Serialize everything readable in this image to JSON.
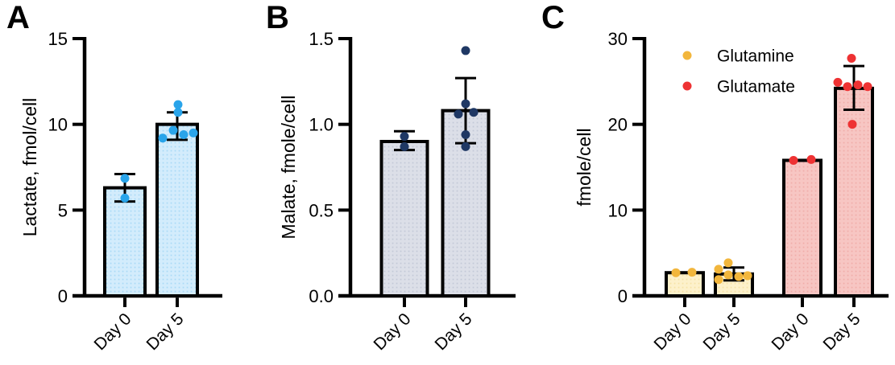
{
  "figure": {
    "background": "#ffffff",
    "text_color": "#000000"
  },
  "chart_data": [
    {
      "panel_label": "A",
      "type": "bar",
      "ylabel": "Lactate, fmol/cell",
      "ylim": [
        0,
        15
      ],
      "grid": false,
      "yticks": [
        {
          "value": 0,
          "label": "0"
        },
        {
          "value": 5,
          "label": "5"
        },
        {
          "value": 10,
          "label": "10"
        },
        {
          "value": 15,
          "label": "15"
        }
      ],
      "bar_style": {
        "fill_base": "#d3ecfc",
        "fill_dot": "#a9daf6",
        "stroke": "#000000"
      },
      "point_color": "#29a4ea",
      "bars": [
        {
          "category": "Day 0",
          "mean": 6.3,
          "error_low": 5.5,
          "error_high": 7.1,
          "points": [
            {
              "v": 6.85,
              "dx": 0
            },
            {
              "v": 5.7,
              "dx": 0
            }
          ]
        },
        {
          "category": "Day 5",
          "mean": 10.0,
          "error_low": 9.1,
          "error_high": 10.7,
          "points": [
            {
              "v": 11.15,
              "dx": 1
            },
            {
              "v": 10.7,
              "dx": 1
            },
            {
              "v": 9.65,
              "dx": -5
            },
            {
              "v": 9.2,
              "dx": -18
            },
            {
              "v": 9.4,
              "dx": 8
            },
            {
              "v": 9.5,
              "dx": 20
            }
          ]
        }
      ]
    },
    {
      "panel_label": "B",
      "type": "bar",
      "ylabel": "Malate, fmole/cell",
      "ylim": [
        0,
        1.5
      ],
      "grid": false,
      "yticks": [
        {
          "value": 0,
          "label": "0.0"
        },
        {
          "value": 0.5,
          "label": "0.5"
        },
        {
          "value": 1.0,
          "label": "1.0"
        },
        {
          "value": 1.5,
          "label": "1.5"
        }
      ],
      "bar_style": {
        "fill_base": "#dcdfe8",
        "fill_dot": "#c2c8d7",
        "stroke": "#000000"
      },
      "point_color": "#1f3864",
      "bars": [
        {
          "category": "Day 0",
          "mean": 0.9,
          "error_low": 0.85,
          "error_high": 0.96,
          "points": [
            {
              "v": 0.93,
              "dx": 0
            },
            {
              "v": 0.87,
              "dx": 0
            }
          ]
        },
        {
          "category": "Day 5",
          "mean": 1.08,
          "error_low": 0.89,
          "error_high": 1.27,
          "points": [
            {
              "v": 1.43,
              "dx": 0
            },
            {
              "v": 1.12,
              "dx": 0
            },
            {
              "v": 1.06,
              "dx": -9
            },
            {
              "v": 1.07,
              "dx": 10
            },
            {
              "v": 0.94,
              "dx": 0
            },
            {
              "v": 0.87,
              "dx": 0
            }
          ]
        }
      ]
    },
    {
      "panel_label": "C",
      "type": "bar",
      "ylabel": "fmole/cell",
      "ylim": [
        0,
        30
      ],
      "grid": false,
      "yticks": [
        {
          "value": 0,
          "label": "0"
        },
        {
          "value": 10,
          "label": "10"
        },
        {
          "value": 20,
          "label": "20"
        },
        {
          "value": 30,
          "label": "30"
        }
      ],
      "legend": [
        {
          "label": "Glutamine",
          "color": "#f2b63c"
        },
        {
          "label": "Glutamate",
          "color": "#ee3233"
        }
      ],
      "bars": [
        {
          "category": "Day 0",
          "series": "Glutamine",
          "mean": 2.7,
          "bar_style": {
            "fill_base": "#fdf1cb",
            "fill_dot": "#f6e3a6",
            "stroke": "#000000"
          },
          "point_color": "#f2b63c",
          "points": [
            {
              "v": 2.7,
              "dx": -11
            },
            {
              "v": 2.75,
              "dx": 9
            }
          ]
        },
        {
          "category": "Day 5",
          "series": "Glutamine",
          "mean": 2.55,
          "error_low": 1.8,
          "error_high": 3.3,
          "bar_style": {
            "fill_base": "#fdf1cb",
            "fill_dot": "#f6e3a6",
            "stroke": "#000000"
          },
          "point_color": "#f2b63c",
          "points": [
            {
              "v": 3.85,
              "dx": -7
            },
            {
              "v": 3.1,
              "dx": -19
            },
            {
              "v": 2.45,
              "dx": -7
            },
            {
              "v": 1.9,
              "dx": -19
            },
            {
              "v": 2.25,
              "dx": 6
            },
            {
              "v": 2.35,
              "dx": 17
            }
          ]
        },
        {
          "category": "Day 0",
          "series": "Glutamate",
          "mean": 15.8,
          "bar_style": {
            "fill_base": "#f7c6c3",
            "fill_dot": "#f1aca9",
            "stroke": "#000000"
          },
          "point_color": "#ee3233",
          "points": [
            {
              "v": 15.8,
              "dx": -11
            },
            {
              "v": 15.9,
              "dx": 11
            }
          ]
        },
        {
          "category": "Day 5",
          "series": "Glutamate",
          "mean": 24.2,
          "error_low": 21.7,
          "error_high": 26.8,
          "bar_style": {
            "fill_base": "#f7c6c3",
            "fill_dot": "#f1aca9",
            "stroke": "#000000"
          },
          "point_color": "#ee3233",
          "points": [
            {
              "v": 27.7,
              "dx": -3
            },
            {
              "v": 24.9,
              "dx": -20
            },
            {
              "v": 24.4,
              "dx": -8
            },
            {
              "v": 24.6,
              "dx": 5
            },
            {
              "v": 24.4,
              "dx": 17
            },
            {
              "v": 20.0,
              "dx": -2
            }
          ]
        }
      ]
    }
  ]
}
